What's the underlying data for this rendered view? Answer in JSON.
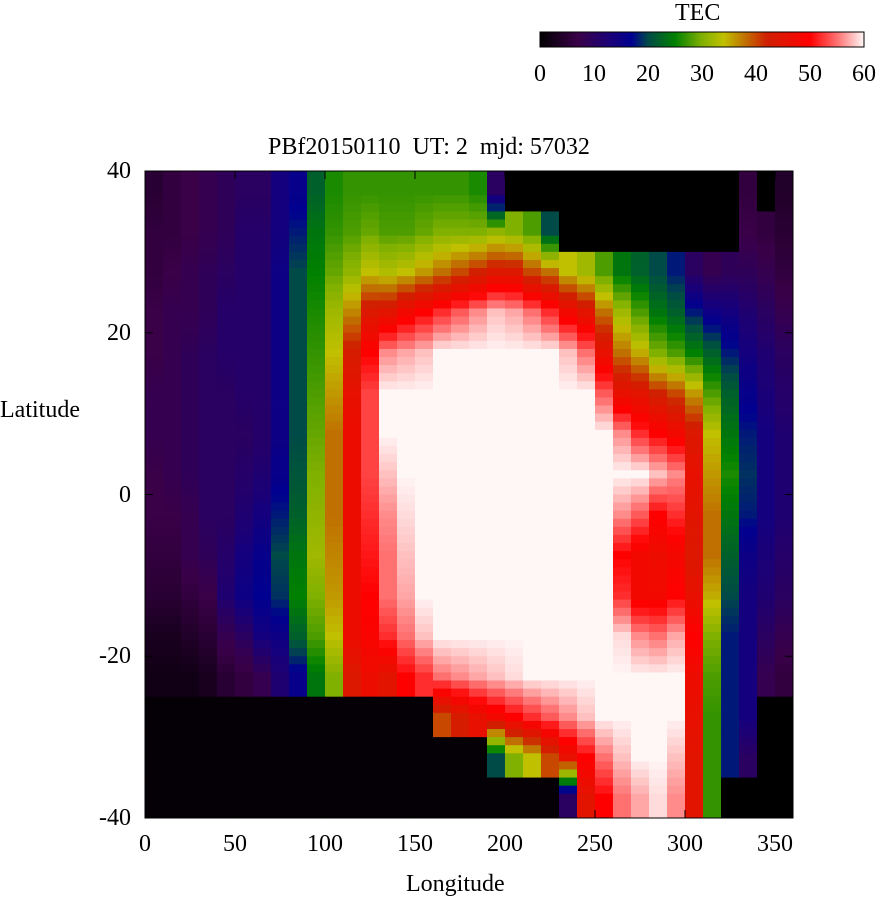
{
  "chart_data": {
    "type": "heatmap",
    "title": "PBf20150110  UT: 2  mjd: 57032",
    "xlabel": "Longitude",
    "ylabel": "Latitude",
    "xlim": [
      0,
      360
    ],
    "ylim": [
      -40,
      40
    ],
    "xticks": [
      "0",
      "50",
      "100",
      "150",
      "200",
      "250",
      "300",
      "350"
    ],
    "yticks": [
      "40",
      "20",
      "0",
      "-20",
      "-40"
    ],
    "colorbar": {
      "label": "TEC",
      "range": [
        0,
        60
      ],
      "ticks": [
        "0",
        "10",
        "20",
        "30",
        "40",
        "50",
        "60"
      ],
      "colormap": [
        [
          0,
          "#000000"
        ],
        [
          7,
          "#3a0048"
        ],
        [
          13,
          "#1a0078"
        ],
        [
          17,
          "#000090"
        ],
        [
          20,
          "#004a48"
        ],
        [
          25,
          "#008000"
        ],
        [
          30,
          "#80b000"
        ],
        [
          34,
          "#c0c000"
        ],
        [
          38,
          "#c07000"
        ],
        [
          42,
          "#d02000"
        ],
        [
          50,
          "#ff0000"
        ],
        [
          55,
          "#ff7070"
        ],
        [
          60,
          "#fff6f6"
        ]
      ]
    },
    "lon_bins_start": [
      0,
      10,
      20,
      30,
      40,
      50,
      60,
      70,
      80,
      90,
      100,
      110,
      120,
      130,
      140,
      150,
      160,
      170,
      180,
      190,
      200,
      210,
      220,
      230,
      240,
      250,
      260,
      270,
      280,
      290,
      300,
      310,
      320,
      330,
      340,
      350
    ],
    "lat_centers": [
      37.5,
      32.5,
      27.5,
      22.5,
      17.5,
      12.5,
      7.5,
      2.5,
      -2.5,
      -7.5,
      -12.5,
      -17.5,
      -22.5,
      -27.5,
      -32.5,
      -37.5
    ],
    "tec_by_lon": [
      [
        5,
        6,
        6,
        7,
        7,
        8,
        8,
        7,
        7,
        6,
        5,
        3,
        2,
        0.5,
        0.5,
        0.5
      ],
      [
        6,
        6,
        7,
        8,
        8,
        8,
        8,
        8,
        7,
        6,
        5,
        3,
        2,
        0.5,
        0.5,
        0.5
      ],
      [
        7,
        7,
        8,
        8,
        9,
        9,
        9,
        9,
        8,
        8,
        6,
        4,
        2,
        0.5,
        0.5,
        0.5
      ],
      [
        8,
        8,
        9,
        9,
        10,
        10,
        10,
        10,
        10,
        9,
        7,
        5,
        3,
        0.5,
        0.5,
        0.5
      ],
      [
        9,
        9,
        10,
        11,
        11,
        10,
        10,
        10,
        10,
        11,
        12,
        8,
        5,
        0.5,
        0.5,
        0.5
      ],
      [
        10,
        11,
        11,
        11,
        11,
        11,
        10,
        11,
        12,
        14,
        15,
        10,
        6,
        0.5,
        0.5,
        0.5
      ],
      [
        10,
        11,
        11,
        11,
        11,
        11,
        11,
        12,
        14,
        16,
        17,
        14,
        8,
        0.5,
        0.5,
        0.5
      ],
      [
        14,
        14,
        15,
        15,
        15,
        15,
        15,
        16,
        18,
        20,
        19,
        15,
        12,
        0.5,
        0.5,
        0.5
      ],
      [
        16,
        18,
        20,
        20,
        20,
        20,
        20,
        21,
        22,
        24,
        25,
        22,
        16,
        0.5,
        0.5,
        0.5
      ],
      [
        22,
        24,
        25,
        26,
        27,
        28,
        29,
        30,
        31,
        32,
        30,
        28,
        24,
        0.5,
        0.5,
        0.5
      ],
      [
        26,
        27,
        29,
        32,
        34,
        36,
        38,
        38,
        38,
        37,
        36,
        34,
        30,
        0.5,
        0.5,
        0.5
      ],
      [
        27,
        28,
        31,
        37,
        43,
        46,
        47,
        47,
        47,
        47,
        47,
        47,
        44,
        0.5,
        0.5,
        0.5
      ],
      [
        27,
        29,
        34,
        44,
        50,
        53,
        53,
        53,
        52,
        51,
        50,
        49,
        47,
        0.5,
        0.5,
        0.5
      ],
      [
        27,
        28,
        33,
        45,
        56,
        60,
        60,
        58,
        56,
        55,
        55,
        52,
        45,
        0.5,
        0.5,
        0.5
      ],
      [
        27,
        28,
        34,
        48,
        57,
        60,
        60,
        60,
        59,
        58,
        57,
        55,
        50,
        0.5,
        0.5,
        0.5
      ],
      [
        27,
        29,
        36,
        50,
        58,
        60,
        60,
        60,
        60,
        60,
        60,
        58,
        52,
        0.5,
        0.5,
        0.5
      ],
      [
        27,
        30,
        38,
        52,
        60,
        60,
        60,
        60,
        60,
        60,
        60,
        60,
        55,
        40,
        0.5,
        0.5
      ],
      [
        27,
        30,
        40,
        54,
        60,
        60,
        60,
        60,
        60,
        60,
        60,
        60,
        56,
        43,
        0.5,
        0.5
      ],
      [
        26,
        30,
        42,
        56,
        60,
        60,
        60,
        60,
        60,
        60,
        60,
        60,
        57,
        46,
        0.5,
        0.5
      ],
      [
        10,
        31,
        44,
        58,
        60,
        60,
        60,
        60,
        60,
        60,
        60,
        60,
        58,
        48,
        20,
        0.5
      ],
      [
        0,
        30,
        44,
        57,
        60,
        60,
        60,
        60,
        60,
        60,
        60,
        60,
        59,
        50,
        30,
        0.5
      ],
      [
        0,
        28,
        40,
        55,
        60,
        60,
        60,
        60,
        60,
        60,
        60,
        60,
        60,
        52,
        34,
        0.5
      ],
      [
        0,
        20,
        38,
        52,
        60,
        60,
        60,
        60,
        60,
        60,
        60,
        60,
        60,
        54,
        40,
        0.5
      ],
      [
        0,
        0,
        34,
        48,
        58,
        60,
        60,
        60,
        60,
        60,
        60,
        60,
        60,
        56,
        46,
        10
      ],
      [
        0,
        0,
        32,
        45,
        55,
        60,
        60,
        60,
        60,
        60,
        60,
        60,
        60,
        58,
        50,
        45
      ],
      [
        0,
        0,
        28,
        38,
        46,
        54,
        60,
        60,
        60,
        60,
        60,
        60,
        60,
        60,
        55,
        50
      ],
      [
        0,
        0,
        24,
        32,
        38,
        46,
        56,
        60,
        56,
        50,
        52,
        59,
        60,
        60,
        58,
        55
      ],
      [
        0,
        0,
        22,
        28,
        35,
        45,
        52,
        60,
        54,
        48,
        48,
        56,
        60,
        60,
        60,
        57
      ],
      [
        0,
        0,
        20,
        24,
        30,
        42,
        50,
        58,
        50,
        47,
        48,
        55,
        60,
        60,
        60,
        59
      ],
      [
        0,
        0,
        18,
        22,
        28,
        40,
        48,
        56,
        52,
        48,
        50,
        57,
        60,
        60,
        58,
        56
      ],
      [
        0,
        0,
        10,
        18,
        25,
        36,
        44,
        46,
        45,
        44,
        46,
        50,
        47,
        46,
        45,
        45
      ],
      [
        0,
        0,
        8,
        15,
        22,
        28,
        34,
        36,
        38,
        38,
        35,
        30,
        28,
        27,
        27,
        27
      ],
      [
        0,
        0,
        9,
        14,
        18,
        22,
        24,
        26,
        24,
        22,
        20,
        18,
        18,
        18,
        18,
        0
      ],
      [
        6,
        7,
        9,
        12,
        14,
        16,
        18,
        19,
        18,
        15,
        14,
        14,
        14,
        14,
        10,
        0
      ],
      [
        0,
        6,
        8,
        10,
        12,
        13,
        14,
        14,
        14,
        13,
        12,
        10,
        8,
        0,
        0,
        0
      ],
      [
        4,
        5,
        6,
        8,
        10,
        11,
        12,
        12,
        12,
        11,
        10,
        8,
        6,
        0,
        0,
        0
      ]
    ]
  }
}
